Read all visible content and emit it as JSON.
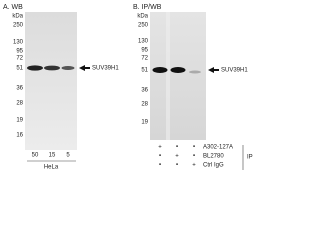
{
  "panel_a": {
    "title": "A. WB",
    "unit": "kDa",
    "markers": [
      "250",
      "130",
      "95",
      "72",
      "51",
      "36",
      "28",
      "19",
      "16"
    ],
    "band_label": "SUV39H1",
    "lanes": [
      "50",
      "15",
      "5"
    ],
    "cell_line": "HeLa"
  },
  "panel_b": {
    "title": "B. IP/WB",
    "unit": "kDa",
    "markers": [
      "250",
      "130",
      "95",
      "72",
      "51",
      "36",
      "28",
      "19"
    ],
    "band_label": "SUV39H1",
    "rows": [
      {
        "label": "A302-127A",
        "marks": [
          "+",
          "•",
          "•"
        ]
      },
      {
        "label": "BL2780",
        "marks": [
          "•",
          "+",
          "•"
        ]
      },
      {
        "label": "Ctrl IgG",
        "marks": [
          "•",
          "•",
          "+"
        ]
      }
    ],
    "group_label": "IP"
  }
}
